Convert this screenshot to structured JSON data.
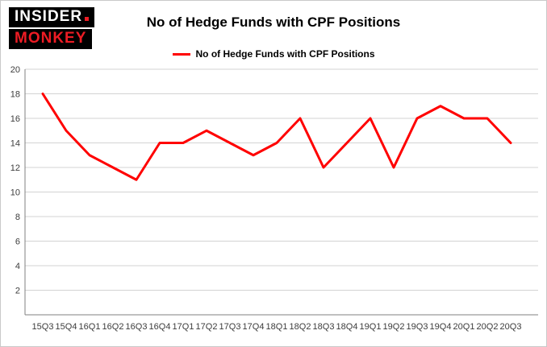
{
  "logo": {
    "line1": "INSIDER",
    "line2": "MONKEY",
    "accent_color": "#ed1c24"
  },
  "header": {
    "title": "No of Hedge Funds with CPF Positions"
  },
  "legend": {
    "label": "No of Hedge Funds with CPF Positions",
    "color": "#ff0000"
  },
  "chart_data": {
    "type": "line",
    "title": "No of Hedge Funds with CPF Positions",
    "categories": [
      "15Q3",
      "15Q4",
      "16Q1",
      "16Q2",
      "16Q3",
      "16Q4",
      "17Q1",
      "17Q2",
      "17Q3",
      "17Q4",
      "18Q1",
      "18Q2",
      "18Q3",
      "18Q4",
      "19Q1",
      "19Q2",
      "19Q3",
      "19Q4",
      "20Q1",
      "20Q2",
      "20Q3"
    ],
    "values": [
      18,
      15,
      13,
      12,
      11,
      14,
      14,
      15,
      14,
      13,
      14,
      16,
      12,
      14,
      16,
      12,
      16,
      17,
      16,
      16,
      14
    ],
    "xlabel": "",
    "ylabel": "",
    "ylim": [
      0,
      20
    ],
    "ytick_step": 2,
    "grid": true,
    "legend_position": "top",
    "line_color": "#ff0000",
    "grid_color": "#d3d3d3",
    "axis_color": "#808080",
    "axis_text_color": "#3c3c3c"
  }
}
